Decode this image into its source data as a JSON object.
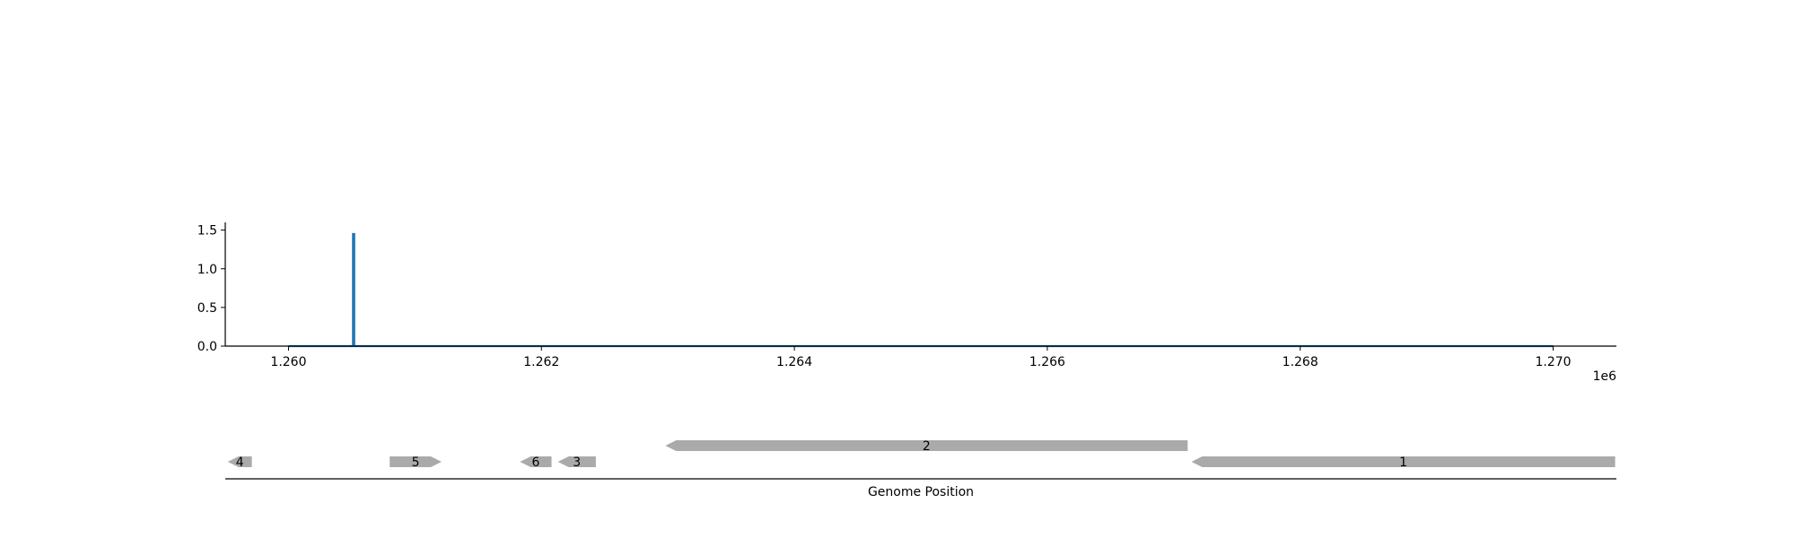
{
  "chart_data": [
    {
      "type": "line",
      "x_scale_label": "1e6",
      "xlim": [
        1.2595,
        1.2705
      ],
      "ylim": [
        0,
        1.6
      ],
      "x_ticks": [
        1.26,
        1.262,
        1.264,
        1.266,
        1.268,
        1.27
      ],
      "x_tick_labels": [
        "1.260",
        "1.262",
        "1.264",
        "1.266",
        "1.268",
        "1.270"
      ],
      "y_ticks": [
        0.0,
        0.5,
        1.0,
        1.5
      ],
      "y_tick_labels": [
        "0.0",
        "0.5",
        "1.0",
        "1.5"
      ],
      "grid": false,
      "series": [
        {
          "color": "#1f77b4",
          "x": [
            1.26,
            1.26051,
            1.26051,
            1.26052,
            1.26052,
            1.27
          ],
          "y": [
            0,
            0,
            1.45,
            1.45,
            0,
            0
          ]
        }
      ]
    },
    {
      "type": "gene_track",
      "xlabel": "Genome Position",
      "xlim": [
        1.2595,
        1.2705
      ],
      "gene_color": "#aaaaaa",
      "genes": [
        {
          "label": "4",
          "start": 1.25952,
          "end": 1.25971,
          "strand": "-",
          "row": 0
        },
        {
          "label": "5",
          "start": 1.2608,
          "end": 1.26121,
          "strand": "+",
          "row": 0
        },
        {
          "label": "6",
          "start": 1.26183,
          "end": 1.26208,
          "strand": "-",
          "row": 0
        },
        {
          "label": "3",
          "start": 1.26213,
          "end": 1.26243,
          "strand": "-",
          "row": 0
        },
        {
          "label": "2",
          "start": 1.26298,
          "end": 1.26711,
          "strand": "-",
          "row": 1
        },
        {
          "label": "1",
          "start": 1.26714,
          "end": 1.27049,
          "strand": "-",
          "row": 0
        }
      ]
    }
  ]
}
